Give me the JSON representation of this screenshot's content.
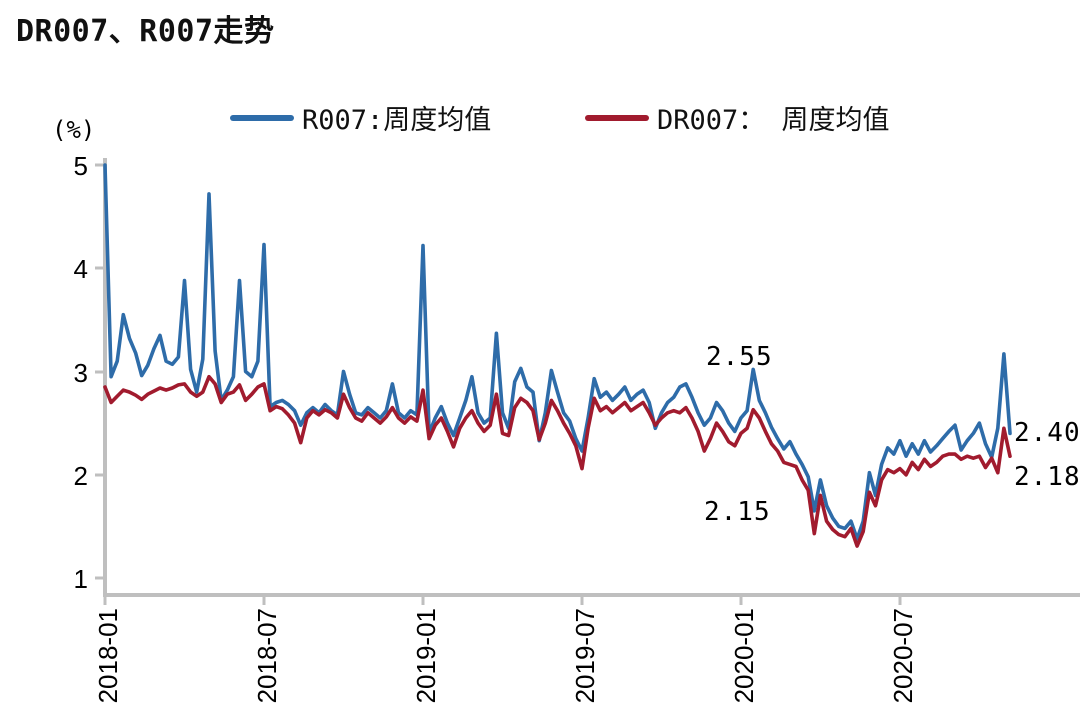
{
  "title": "DR007、R007走势",
  "y_unit_label": "(%)",
  "legend": [
    {
      "label": "R007:周度均值",
      "color": "#2E6CA9"
    },
    {
      "label": "DR007： 周度均值",
      "color": "#A11B2E"
    }
  ],
  "annotations": [
    {
      "text": "2.55",
      "note": "callout above R007 peak near 2020-01"
    },
    {
      "text": "2.15",
      "note": "callout below lines near 2020-01"
    },
    {
      "text": "2.40",
      "note": "final R007 value at right edge"
    },
    {
      "text": "2.18",
      "note": "final DR007 value at right edge"
    }
  ],
  "chart_data": {
    "type": "line",
    "title": "DR007、R007走势",
    "ylabel": "(%)",
    "ylim": [
      1,
      5
    ],
    "y_tick_labels": [
      "5",
      "4",
      "3",
      "2",
      "1"
    ],
    "x_tick_labels": [
      "2018-01",
      "2018-07",
      "2019-01",
      "2019-07",
      "2020-01",
      "2020-07"
    ],
    "x_unit": "week (weekly mean, 2018-01 through late 2020)",
    "grid": false,
    "legend_position": "top",
    "series": [
      {
        "name": "R007:周度均值",
        "color": "#2E6CA9",
        "values": [
          5.0,
          2.95,
          3.1,
          3.55,
          3.32,
          3.18,
          2.96,
          3.06,
          3.22,
          3.35,
          3.1,
          3.07,
          3.14,
          3.88,
          3.02,
          2.8,
          3.12,
          4.72,
          3.2,
          2.72,
          2.82,
          2.95,
          3.88,
          3.0,
          2.95,
          3.1,
          4.23,
          2.66,
          2.7,
          2.72,
          2.68,
          2.62,
          2.48,
          2.6,
          2.65,
          2.6,
          2.68,
          2.62,
          2.58,
          3.0,
          2.78,
          2.6,
          2.58,
          2.65,
          2.6,
          2.55,
          2.62,
          2.88,
          2.6,
          2.55,
          2.62,
          2.58,
          4.22,
          2.4,
          2.55,
          2.66,
          2.5,
          2.38,
          2.55,
          2.72,
          2.95,
          2.6,
          2.5,
          2.55,
          3.37,
          2.6,
          2.45,
          2.9,
          3.03,
          2.85,
          2.8,
          2.33,
          2.6,
          3.01,
          2.8,
          2.6,
          2.52,
          2.35,
          2.23,
          2.55,
          2.93,
          2.75,
          2.8,
          2.72,
          2.78,
          2.85,
          2.72,
          2.78,
          2.82,
          2.7,
          2.45,
          2.6,
          2.7,
          2.75,
          2.85,
          2.88,
          2.75,
          2.6,
          2.48,
          2.55,
          2.7,
          2.62,
          2.5,
          2.42,
          2.55,
          2.62,
          3.02,
          2.72,
          2.6,
          2.46,
          2.35,
          2.25,
          2.32,
          2.2,
          2.1,
          1.98,
          1.65,
          1.95,
          1.7,
          1.58,
          1.5,
          1.48,
          1.55,
          1.38,
          1.55,
          2.02,
          1.8,
          2.1,
          2.26,
          2.2,
          2.33,
          2.18,
          2.3,
          2.2,
          2.33,
          2.22,
          2.28,
          2.35,
          2.42,
          2.48,
          2.24,
          2.33,
          2.4,
          2.5,
          2.3,
          2.17,
          2.45,
          3.17,
          2.4
        ]
      },
      {
        "name": "DR007： 周度均值",
        "color": "#A11B2E",
        "values": [
          2.85,
          2.7,
          2.76,
          2.82,
          2.8,
          2.77,
          2.73,
          2.78,
          2.81,
          2.84,
          2.82,
          2.84,
          2.87,
          2.88,
          2.8,
          2.76,
          2.8,
          2.95,
          2.88,
          2.7,
          2.78,
          2.8,
          2.87,
          2.72,
          2.78,
          2.85,
          2.88,
          2.62,
          2.66,
          2.64,
          2.58,
          2.5,
          2.31,
          2.55,
          2.62,
          2.58,
          2.63,
          2.6,
          2.55,
          2.78,
          2.65,
          2.55,
          2.52,
          2.6,
          2.55,
          2.5,
          2.56,
          2.65,
          2.55,
          2.5,
          2.56,
          2.52,
          2.82,
          2.35,
          2.48,
          2.55,
          2.42,
          2.27,
          2.45,
          2.55,
          2.62,
          2.5,
          2.42,
          2.48,
          2.78,
          2.4,
          2.38,
          2.65,
          2.74,
          2.7,
          2.62,
          2.34,
          2.5,
          2.72,
          2.62,
          2.5,
          2.4,
          2.28,
          2.06,
          2.45,
          2.74,
          2.62,
          2.66,
          2.6,
          2.65,
          2.7,
          2.62,
          2.66,
          2.7,
          2.6,
          2.48,
          2.55,
          2.6,
          2.62,
          2.6,
          2.65,
          2.55,
          2.42,
          2.23,
          2.35,
          2.5,
          2.42,
          2.32,
          2.28,
          2.4,
          2.45,
          2.63,
          2.55,
          2.42,
          2.3,
          2.23,
          2.12,
          2.1,
          2.08,
          1.95,
          1.85,
          1.43,
          1.8,
          1.55,
          1.47,
          1.42,
          1.4,
          1.48,
          1.31,
          1.45,
          1.83,
          1.7,
          1.95,
          2.05,
          2.02,
          2.06,
          2.0,
          2.12,
          2.05,
          2.15,
          2.08,
          2.12,
          2.18,
          2.2,
          2.2,
          2.15,
          2.18,
          2.16,
          2.18,
          2.07,
          2.16,
          2.02,
          2.45,
          2.18
        ]
      }
    ],
    "annotation_values": {
      "r007_callout": 2.55,
      "dr007_callout": 2.15,
      "r007_last": 2.4,
      "dr007_last": 2.18
    }
  }
}
